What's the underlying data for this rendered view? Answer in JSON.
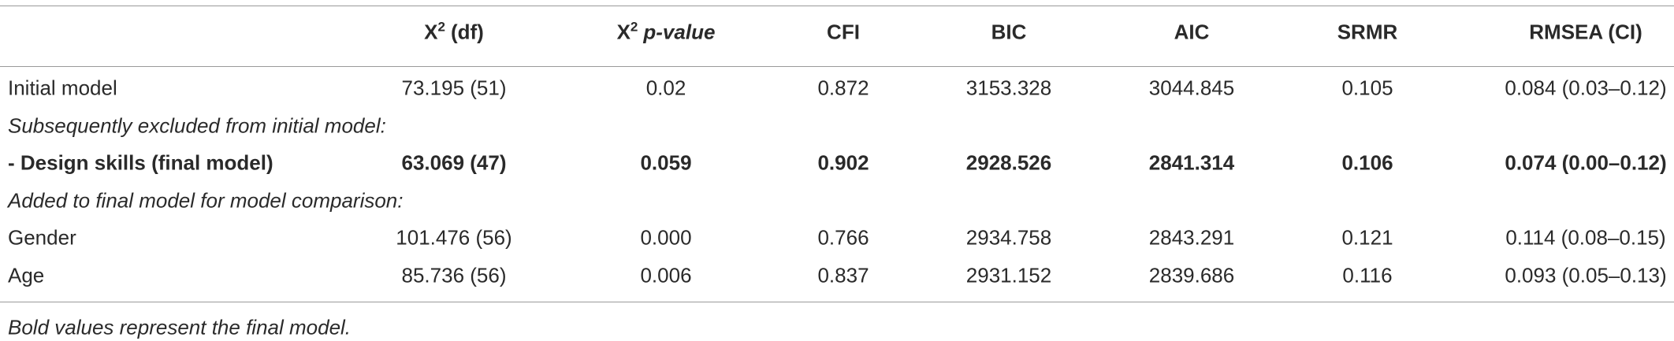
{
  "table": {
    "headers": [
      {
        "text": "X",
        "sup": "2",
        "suffix": "(df)"
      },
      {
        "text": "X",
        "sup": "2",
        "suffix": "p-value",
        "italic": true
      },
      {
        "text": "CFI"
      },
      {
        "text": "BIC"
      },
      {
        "text": "AIC"
      },
      {
        "text": "SRMR"
      },
      {
        "text": "RMSEA (CI)"
      }
    ],
    "rows": [
      {
        "label": "Initial model",
        "cells": [
          "73.195 (51)",
          "0.02",
          "0.872",
          "3153.328",
          "3044.845",
          "0.105",
          "0.084 (0.03–0.12)"
        ]
      },
      {
        "section": "Subsequently excluded from initial model:"
      },
      {
        "label": "- Design skills (final model)",
        "bold": true,
        "cells": [
          "63.069 (47)",
          "0.059",
          "0.902",
          "2928.526",
          "2841.314",
          "0.106",
          "0.074 (0.00–0.12)"
        ]
      },
      {
        "section": "Added to final model for model comparison:"
      },
      {
        "label": "Gender",
        "cells": [
          "101.476 (56)",
          "0.000",
          "0.766",
          "2934.758",
          "2843.291",
          "0.121",
          "0.114 (0.08–0.15)"
        ]
      },
      {
        "label": "Age",
        "cells": [
          "85.736 (56)",
          "0.006",
          "0.837",
          "2931.152",
          "2839.686",
          "0.116",
          "0.093 (0.05–0.13)"
        ]
      }
    ],
    "footnote": "Bold values represent the final model."
  }
}
